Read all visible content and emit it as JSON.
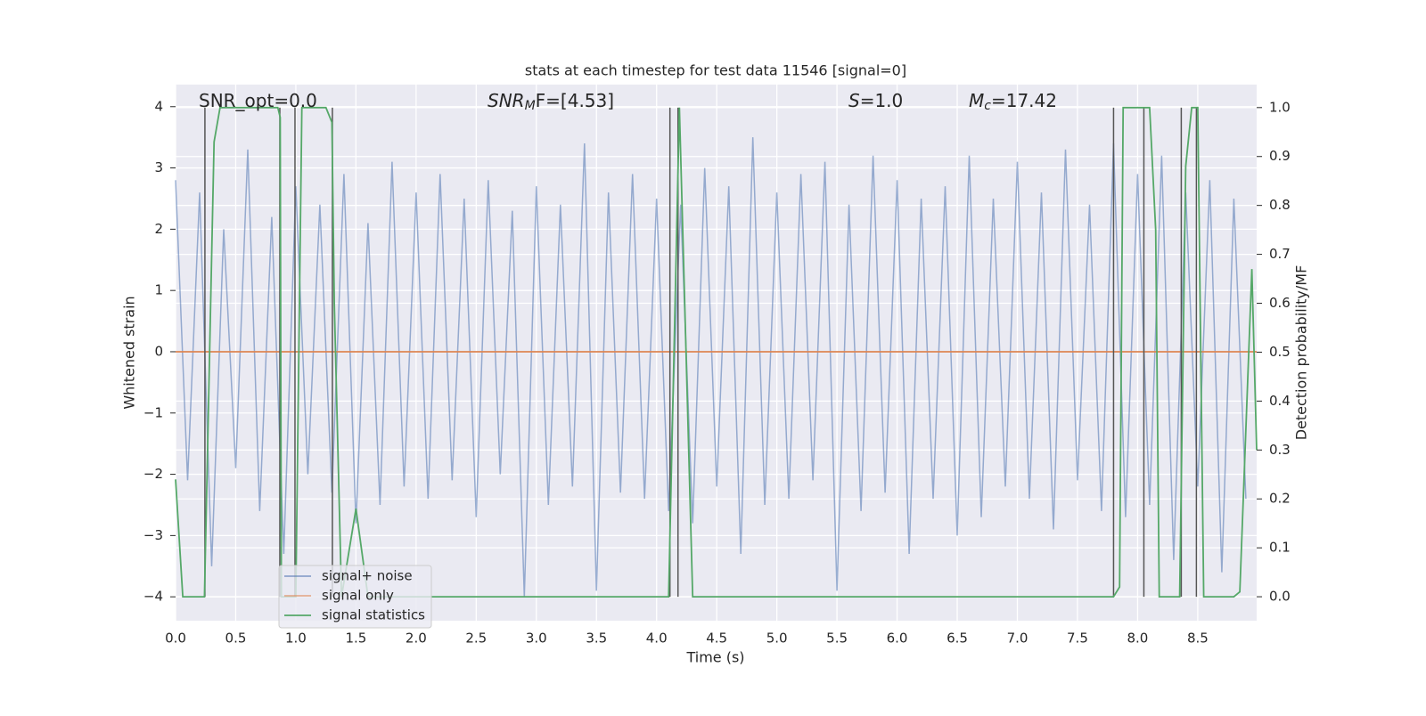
{
  "chart_data": {
    "type": "line",
    "title": "stats at each timestep for test data 11546 [signal=0]",
    "xlabel": "Time (s)",
    "ylabel": "Whitened strain",
    "y2label": "Detection probability/MF",
    "annotations": [
      {
        "base": "SNR_opt=0.0"
      },
      {
        "base": "SNR",
        "sub": "M",
        "tail": "F=[4.53]"
      },
      {
        "base": "S",
        "tail": "=1.0"
      },
      {
        "base": "M",
        "sub": "c",
        "tail": "=17.42"
      }
    ],
    "xlim": [
      0,
      8.99
    ],
    "ylim": [
      -4.39,
      4.36
    ],
    "y2lim": [
      -0.049,
      1.047
    ],
    "grid": true,
    "xticks": [
      {
        "value": 0,
        "label": "0.0"
      },
      0.5,
      {
        "value": 1,
        "label": "1.0"
      },
      1.5,
      {
        "value": 2,
        "label": "2.0"
      },
      2.5,
      {
        "value": 3,
        "label": "3.0"
      },
      3.5,
      {
        "value": 4,
        "label": "4.0"
      },
      4.5,
      {
        "value": 5,
        "label": "5.0"
      },
      5.5,
      {
        "value": 6,
        "label": "6.0"
      },
      6.5,
      {
        "value": 7,
        "label": "7.0"
      },
      7.5,
      {
        "value": 8,
        "label": "8.0"
      },
      8.5
    ],
    "yticks": [
      {
        "value": -4,
        "label": "−4"
      },
      {
        "value": -3,
        "label": "−3"
      },
      {
        "value": -2,
        "label": "−2"
      },
      {
        "value": -1,
        "label": "−1"
      },
      0,
      1,
      2,
      3,
      4
    ],
    "y2ticks": [
      {
        "value": 0,
        "label": "0.0"
      },
      0.1,
      0.2,
      0.3,
      0.4,
      0.5,
      0.6,
      0.7,
      0.8,
      0.9,
      {
        "value": 1,
        "label": "1.0"
      }
    ],
    "legend": "lower left",
    "series": [
      {
        "name": "signal+ noise",
        "color": "#4c72b0",
        "x": [
          0,
          0.1,
          0.2,
          0.3,
          0.4,
          0.5,
          0.6,
          0.7,
          0.8,
          0.9,
          1,
          1.1,
          1.2,
          1.3,
          1.4,
          1.5,
          1.6,
          1.7,
          1.8,
          1.9,
          2,
          2.1,
          2.2,
          2.3,
          2.4,
          2.5,
          2.6,
          2.7,
          2.8,
          2.9,
          3,
          3.1,
          3.2,
          3.3,
          3.4,
          3.5,
          3.6,
          3.7,
          3.8,
          3.9,
          4,
          4.1,
          4.2,
          4.3,
          4.4,
          4.5,
          4.6,
          4.7,
          4.8,
          4.9,
          5,
          5.1,
          5.2,
          5.3,
          5.4,
          5.5,
          5.6,
          5.7,
          5.8,
          5.9,
          6,
          6.1,
          6.2,
          6.3,
          6.4,
          6.5,
          6.6,
          6.7,
          6.8,
          6.9,
          7,
          7.1,
          7.2,
          7.3,
          7.4,
          7.5,
          7.6,
          7.7,
          7.8,
          7.9,
          8,
          8.1,
          8.2,
          8.3,
          8.4,
          8.5,
          8.6,
          8.7,
          8.8,
          8.9
        ],
        "values": [
          2.8,
          -2.1,
          2.6,
          -3.5,
          2.0,
          -1.9,
          3.3,
          -2.6,
          2.2,
          -3.3,
          2.7,
          -2.0,
          2.4,
          -2.3,
          2.9,
          -2.8,
          2.1,
          -2.5,
          3.1,
          -2.2,
          2.6,
          -2.4,
          2.9,
          -2.1,
          2.5,
          -2.7,
          2.8,
          -2.0,
          2.3,
          -4.0,
          2.7,
          -2.5,
          2.4,
          -2.2,
          3.4,
          -3.9,
          2.6,
          -2.3,
          2.9,
          -2.4,
          2.5,
          -2.6,
          2.4,
          -2.8,
          3.0,
          -2.2,
          2.7,
          -3.3,
          3.5,
          -2.5,
          2.6,
          -2.4,
          2.9,
          -2.1,
          3.1,
          -3.9,
          2.4,
          -2.6,
          3.2,
          -2.3,
          2.8,
          -3.3,
          2.5,
          -2.4,
          2.7,
          -3.0,
          3.2,
          -2.7,
          2.5,
          -2.2,
          3.1,
          -2.4,
          2.6,
          -2.9,
          3.3,
          -2.1,
          2.4,
          -2.6,
          3.4,
          -2.7,
          2.9,
          -2.5,
          3.2,
          -3.4,
          2.6,
          -2.2,
          2.8,
          -3.6,
          2.5,
          -2.4
        ]
      },
      {
        "name": "signal only",
        "color": "#dd8452",
        "x": [
          0,
          8.99
        ],
        "values": [
          0,
          0
        ]
      },
      {
        "name": "signal statistics",
        "color": "#55a868",
        "axis": "y2",
        "x": [
          0,
          0.06,
          0.24,
          0.32,
          0.37,
          0.85,
          0.87,
          0.88,
          0.93,
          1.0,
          1.05,
          1.25,
          1.3,
          1.32,
          1.38,
          1.5,
          1.6,
          4.1,
          4.19,
          4.3,
          7.8,
          7.85,
          7.88,
          8.1,
          8.15,
          8.18,
          8.35,
          8.4,
          8.45,
          8.5,
          8.55,
          8.8,
          8.85,
          8.95,
          8.99
        ],
        "values": [
          0.24,
          0,
          0,
          0.93,
          1,
          1,
          0.98,
          0,
          0,
          0,
          1,
          1,
          0.97,
          0.6,
          0,
          0.18,
          0,
          0,
          1,
          0,
          0,
          0.02,
          1,
          1,
          0.75,
          0,
          0,
          0.88,
          1,
          1,
          0,
          0,
          0.01,
          0.67,
          0.3
        ]
      }
    ],
    "vlines": {
      "color": "#555555",
      "x": [
        0.244,
        0.867,
        0.993,
        1.304,
        4.111,
        4.178,
        7.8,
        8.052,
        8.363,
        8.489
      ]
    }
  }
}
